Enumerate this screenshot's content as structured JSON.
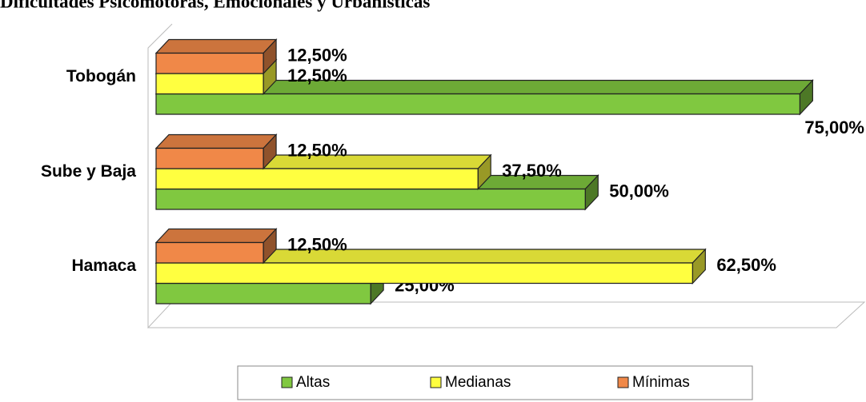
{
  "chart_data": {
    "type": "bar",
    "orientation": "horizontal",
    "title": "Dificultades Psicomotoras, Emocionales y Urbanísticas",
    "categories": [
      "Hamaca",
      "Sube y Baja",
      "Tobogán"
    ],
    "series": [
      {
        "name": "Altas",
        "color": "#80c840",
        "values": [
          25,
          50,
          75
        ],
        "value_labels": [
          "25,00%",
          "50,00%",
          "75,00%"
        ]
      },
      {
        "name": "Medianas",
        "color": "#ffff40",
        "values": [
          62.5,
          37.5,
          12.5
        ],
        "value_labels": [
          "62,50%",
          "37,50%",
          "12,50%"
        ]
      },
      {
        "name": "Mínimas",
        "color": "#f08848",
        "values": [
          12.5,
          12.5,
          12.5
        ],
        "value_labels": [
          "12,50%",
          "12,50%",
          "12,50%"
        ]
      }
    ],
    "xlim": [
      0,
      80
    ],
    "legend": "bottom"
  }
}
